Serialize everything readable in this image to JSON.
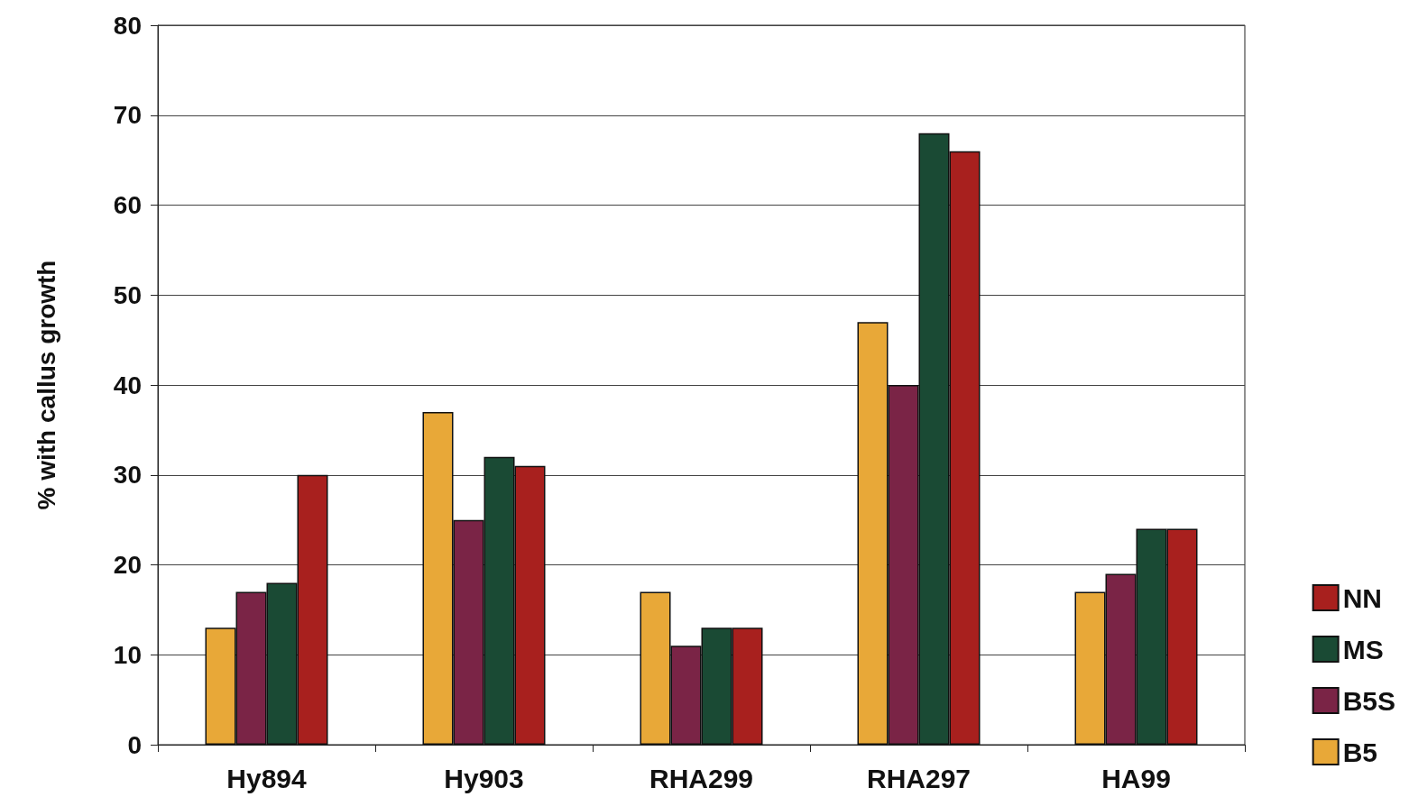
{
  "chart_data": {
    "type": "bar",
    "ylabel": "% with callus growth",
    "categories": [
      "Hy894",
      "Hy903",
      "RHA299",
      "RHA297",
      "HA99"
    ],
    "series": [
      {
        "name": "B5",
        "color": "#e8a838",
        "values": [
          13,
          37,
          17,
          47,
          17
        ]
      },
      {
        "name": "B5S",
        "color": "#7a2446",
        "values": [
          17,
          25,
          11,
          40,
          19
        ]
      },
      {
        "name": "MS",
        "color": "#1a4a34",
        "values": [
          18,
          32,
          13,
          68,
          24
        ]
      },
      {
        "name": "NN",
        "color": "#a8201e",
        "values": [
          30,
          31,
          13,
          66,
          24
        ]
      }
    ],
    "ylim": [
      0,
      80
    ],
    "yticks": [
      0,
      10,
      20,
      30,
      40,
      50,
      60,
      70,
      80
    ],
    "grid": "y",
    "legend": "right"
  }
}
